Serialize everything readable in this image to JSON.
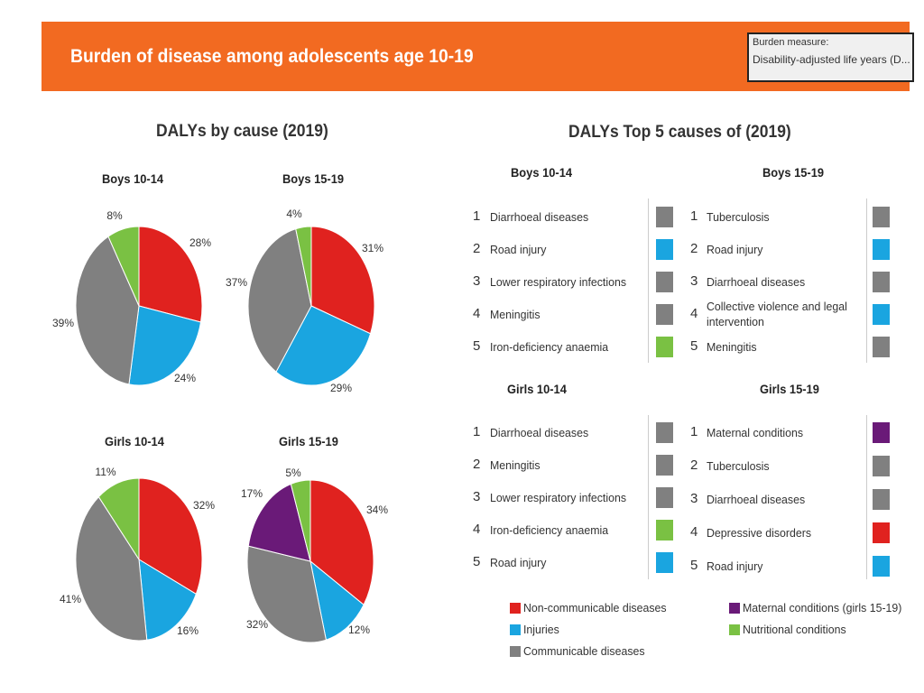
{
  "header": {
    "title": "Burden of disease among adolescents age 10-19",
    "measure_label": "Burden measure:",
    "measure_value": "Disability-adjusted life years (D..."
  },
  "colors": {
    "noncommunicable": "#e0221f",
    "injuries": "#1aa5e0",
    "communicable": "#808080",
    "maternal": "#6a1a78",
    "nutritional": "#7ac143",
    "banner": "#f26a21"
  },
  "left_title": "DALYs by cause (2019)",
  "right_title": "DALYs Top 5 causes of  (2019)",
  "chart_data": [
    {
      "type": "pie",
      "title": "Boys 10-14",
      "slices": [
        {
          "category": "Non-communicable diseases",
          "value": 28,
          "label": "28%",
          "color": "noncommunicable"
        },
        {
          "category": "Injuries",
          "value": 24,
          "label": "24%",
          "color": "injuries"
        },
        {
          "category": "Communicable diseases",
          "value": 39,
          "label": "39%",
          "color": "communicable"
        },
        {
          "category": "Nutritional conditions",
          "value": 8,
          "label": "8%",
          "color": "nutritional"
        }
      ]
    },
    {
      "type": "pie",
      "title": "Boys 15-19",
      "slices": [
        {
          "category": "Non-communicable diseases",
          "value": 31,
          "label": "31%",
          "color": "noncommunicable"
        },
        {
          "category": "Injuries",
          "value": 29,
          "label": "29%",
          "color": "injuries"
        },
        {
          "category": "Communicable diseases",
          "value": 37,
          "label": "37%",
          "color": "communicable"
        },
        {
          "category": "Nutritional conditions",
          "value": 4,
          "label": "4%",
          "color": "nutritional"
        }
      ]
    },
    {
      "type": "pie",
      "title": "Girls 10-14",
      "slices": [
        {
          "category": "Non-communicable diseases",
          "value": 32,
          "label": "32%",
          "color": "noncommunicable"
        },
        {
          "category": "Injuries",
          "value": 16,
          "label": "16%",
          "color": "injuries"
        },
        {
          "category": "Communicable diseases",
          "value": 41,
          "label": "41%",
          "color": "communicable"
        },
        {
          "category": "Nutritional conditions",
          "value": 11,
          "label": "11%",
          "color": "nutritional"
        }
      ]
    },
    {
      "type": "pie",
      "title": "Girls 15-19",
      "slices": [
        {
          "category": "Non-communicable diseases",
          "value": 34,
          "label": "34%",
          "color": "noncommunicable"
        },
        {
          "category": "Injuries",
          "value": 12,
          "label": "12%",
          "color": "injuries"
        },
        {
          "category": "Communicable diseases",
          "value": 32,
          "label": "32%",
          "color": "communicable"
        },
        {
          "category": "Maternal conditions (girls 15-19)",
          "value": 17,
          "label": "17%",
          "color": "maternal"
        },
        {
          "category": "Nutritional conditions",
          "value": 5,
          "label": "5%",
          "color": "nutritional"
        }
      ]
    }
  ],
  "top5": [
    {
      "title": "Boys 10-14",
      "items": [
        {
          "rank": "1",
          "label": "Diarrhoeal diseases",
          "color": "communicable"
        },
        {
          "rank": "2",
          "label": "Road injury",
          "color": "injuries"
        },
        {
          "rank": "3",
          "label": "Lower respiratory infections",
          "color": "communicable"
        },
        {
          "rank": "4",
          "label": "Meningitis",
          "color": "communicable"
        },
        {
          "rank": "5",
          "label": "Iron-deficiency anaemia",
          "color": "nutritional"
        }
      ]
    },
    {
      "title": "Boys 15-19",
      "items": [
        {
          "rank": "1",
          "label": "Tuberculosis",
          "color": "communicable"
        },
        {
          "rank": "2",
          "label": "Road injury",
          "color": "injuries"
        },
        {
          "rank": "3",
          "label": "Diarrhoeal diseases",
          "color": "communicable"
        },
        {
          "rank": "4",
          "label": "Collective violence and legal intervention",
          "color": "injuries"
        },
        {
          "rank": "5",
          "label": "Meningitis",
          "color": "communicable"
        }
      ]
    },
    {
      "title": "Girls 10-14",
      "items": [
        {
          "rank": "1",
          "label": "Diarrhoeal diseases",
          "color": "communicable"
        },
        {
          "rank": "2",
          "label": "Meningitis",
          "color": "communicable"
        },
        {
          "rank": "3",
          "label": "Lower respiratory infections",
          "color": "communicable"
        },
        {
          "rank": "4",
          "label": "Iron-deficiency anaemia",
          "color": "nutritional"
        },
        {
          "rank": "5",
          "label": "Road injury",
          "color": "injuries"
        }
      ]
    },
    {
      "title": "Girls 15-19",
      "items": [
        {
          "rank": "1",
          "label": "Maternal conditions",
          "color": "maternal"
        },
        {
          "rank": "2",
          "label": "Tuberculosis",
          "color": "communicable"
        },
        {
          "rank": "3",
          "label": "Diarrhoeal diseases",
          "color": "communicable"
        },
        {
          "rank": "4",
          "label": "Depressive disorders",
          "color": "noncommunicable"
        },
        {
          "rank": "5",
          "label": "Road injury",
          "color": "injuries"
        }
      ]
    }
  ],
  "legend": [
    {
      "label": "Non-communicable diseases",
      "color": "noncommunicable"
    },
    {
      "label": "Injuries",
      "color": "injuries"
    },
    {
      "label": "Communicable diseases",
      "color": "communicable"
    },
    {
      "label": "Maternal conditions (girls 15-19)",
      "color": "maternal"
    },
    {
      "label": "Nutritional conditions",
      "color": "nutritional"
    }
  ]
}
